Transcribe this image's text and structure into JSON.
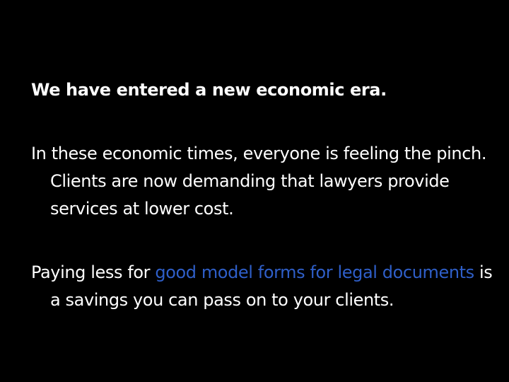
{
  "slide": {
    "background": "#000000",
    "text_color": "#ffffff",
    "link_color": "#2f5fc9",
    "heading": "We have entered a new economic era.",
    "paragraph2": "In these economic times, everyone is feeling the pinch. Clients are now demanding that lawyers provide services at lower cost.",
    "paragraph3": {
      "before": "Paying less for ",
      "link": "good model forms for legal documents",
      "after": " is a savings you can pass on to your clients."
    }
  }
}
